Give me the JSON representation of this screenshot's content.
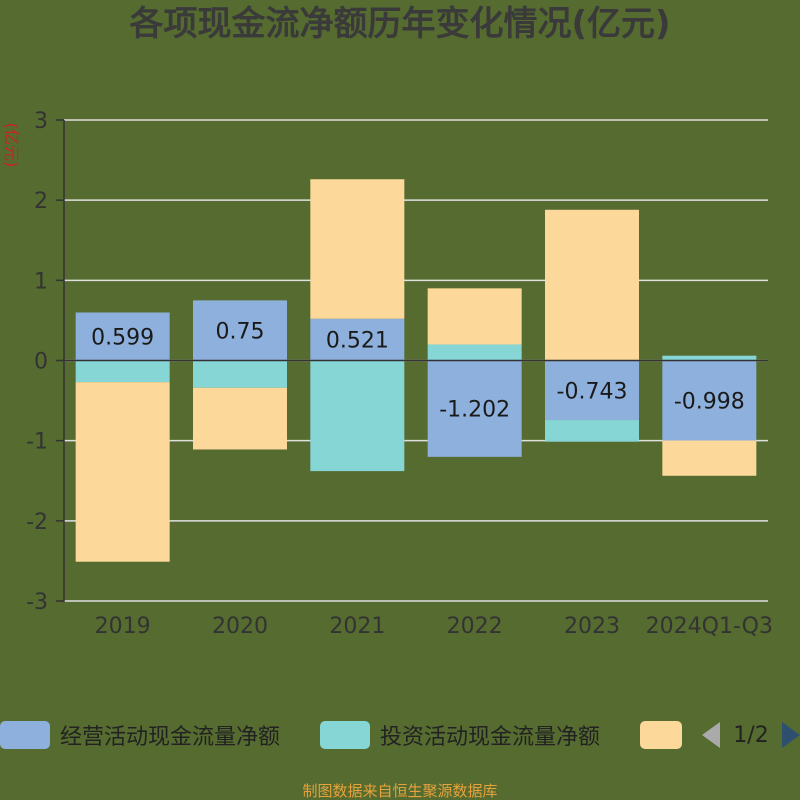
{
  "chart_data": {
    "type": "bar",
    "stacked": true,
    "title": "各项现金流净额历年变化情况(亿元)",
    "ylabel": "(亿元)",
    "categories": [
      "2019",
      "2020",
      "2021",
      "2022",
      "2023",
      "2024Q1-Q3"
    ],
    "ylim": [
      -3,
      3
    ],
    "yticks": [
      3,
      2,
      1,
      0,
      -1,
      -2,
      -3
    ],
    "grid": true,
    "series": [
      {
        "name": "经营活动现金流量净额",
        "color": "#8eb0dc",
        "values": [
          0.599,
          0.75,
          0.521,
          -1.202,
          -0.743,
          -0.998
        ],
        "labels": [
          "0.599",
          "0.75",
          "0.521",
          "-1.202",
          "-0.743",
          "-0.998"
        ]
      },
      {
        "name": "投资活动现金流量净额",
        "color": "#86d6d6",
        "values": [
          -0.27,
          -0.34,
          -1.38,
          0.2,
          -0.27,
          0.06
        ]
      },
      {
        "name": "",
        "color": "#fcd89a",
        "values": [
          -2.24,
          -0.77,
          1.74,
          0.7,
          1.88,
          -0.44
        ]
      }
    ],
    "legend": {
      "position": "bottom",
      "page": "1/2"
    },
    "source": "制图数据来自恒生聚源数据库"
  }
}
